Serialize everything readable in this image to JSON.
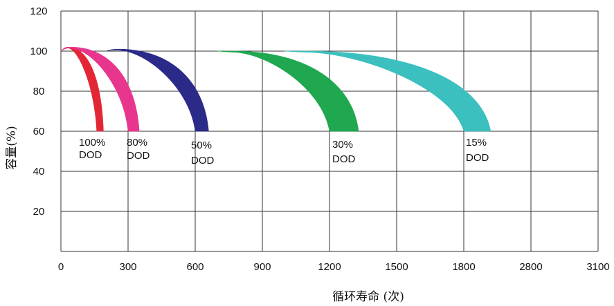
{
  "chart_data": {
    "type": "area",
    "xlabel": "循环寿命 (次)",
    "ylabel": "容量(%)",
    "x_ticks": [
      "0",
      "300",
      "600",
      "900",
      "1200",
      "1500",
      "1800",
      "2800",
      "3100"
    ],
    "y_ticks": [
      20,
      40,
      60,
      80,
      100,
      120
    ],
    "ylim": [
      0,
      120
    ],
    "grid": true,
    "series": [
      {
        "label_top": "100%",
        "label_bottom": "DOD",
        "color": "#e32636",
        "start_x": 0,
        "peak_x": 30,
        "peak_y": 102,
        "end_x_inner": 160,
        "end_x_outer": 190,
        "end_y": 60
      },
      {
        "label_top": "80%",
        "label_bottom": "DOD",
        "color": "#e8358e",
        "start_x": 0,
        "peak_x": 40,
        "peak_y": 102,
        "end_x_inner": 300,
        "end_x_outer": 350,
        "end_y": 60
      },
      {
        "label_top": "50%",
        "label_bottom": "DOD",
        "color": "#2b2a88",
        "start_x": 200,
        "peak_x": 250,
        "peak_y": 101,
        "end_x_inner": 600,
        "end_x_outer": 660,
        "end_y": 60
      },
      {
        "label_top": "30%",
        "label_bottom": "DOD",
        "color": "#1fa84f",
        "start_x": 700,
        "peak_x": 760,
        "peak_y": 100,
        "end_x_inner": 1200,
        "end_x_outer": 1330,
        "end_y": 60
      },
      {
        "label_top": "15%",
        "label_bottom": "DOD",
        "color": "#3bbfbf",
        "start_x": 1000,
        "peak_x": 1080,
        "peak_y": 100,
        "end_x_inner": 1800,
        "end_x_outer": 1920,
        "end_y": 60
      }
    ]
  }
}
